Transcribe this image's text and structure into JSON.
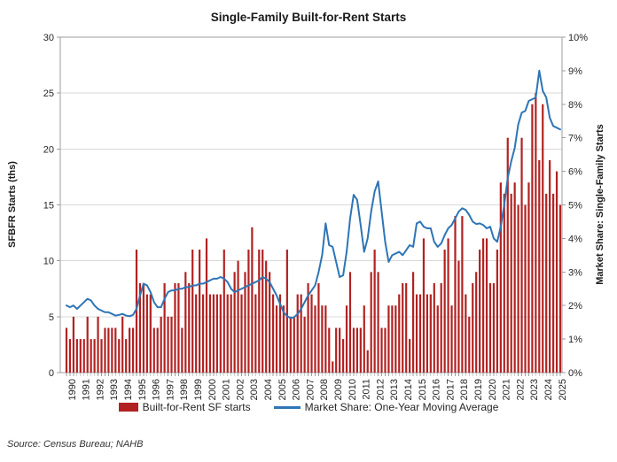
{
  "title": "Single-Family Built-for-Rent Starts",
  "source": "Source: Census Bureau; NAHB",
  "legend": {
    "bars_label": "Built-for-Rent SF starts",
    "line_label": "Market Share: One-Year Moving Average"
  },
  "colors": {
    "bar": "#B22222",
    "line": "#2E75B6",
    "grid": "#D9D9D9",
    "axis": "#9E9E9E",
    "text": "#262626"
  },
  "chart_data": {
    "type": "bar",
    "subtype": "quarterly bars with moving-average line overlay",
    "title": "Single-Family Built-for-Rent Starts",
    "left_axis": {
      "label": "SFBFR Starts (ths)",
      "min": 0,
      "max": 30,
      "tick_step": 5,
      "ticks": [
        "0",
        "5",
        "10",
        "15",
        "20",
        "25",
        "30"
      ]
    },
    "right_axis": {
      "label": "Market Share: Single-Family Starts",
      "min": 0,
      "max": 10,
      "tick_step": 1,
      "ticks": [
        "0%",
        "1%",
        "2%",
        "3%",
        "4%",
        "5%",
        "6%",
        "7%",
        "8%",
        "9%",
        "10%"
      ]
    },
    "x_years": [
      "1990",
      "1991",
      "1992",
      "1993",
      "1994",
      "1995",
      "1996",
      "1997",
      "1998",
      "1999",
      "2000",
      "2001",
      "2002",
      "2003",
      "2004",
      "2005",
      "2006",
      "2007",
      "2008",
      "2009",
      "2010",
      "2011",
      "2012",
      "2013",
      "2014",
      "2015",
      "2016",
      "2017",
      "2018",
      "2019",
      "2020",
      "2021",
      "2022",
      "2023",
      "2024",
      "2025"
    ],
    "quarters_per_year": 4,
    "start_quarter": "1990Q1",
    "end_quarter": "2025Q2",
    "grid": "horizontal",
    "legend_position": "bottom",
    "series": [
      {
        "name": "Built-for-Rent SF starts",
        "type": "bar",
        "axis": "left",
        "values": [
          4,
          3,
          5,
          3,
          3,
          3,
          5,
          3,
          3,
          5,
          3,
          4,
          4,
          4,
          4,
          3,
          5,
          3,
          4,
          4,
          11,
          8,
          8,
          7,
          7,
          4,
          4,
          5,
          8,
          5,
          5,
          8,
          8,
          4,
          9,
          8,
          11,
          7,
          11,
          7,
          12,
          7,
          7,
          7,
          7,
          11,
          7,
          7,
          9,
          10,
          7,
          9,
          11,
          13,
          7,
          11,
          11,
          10,
          9,
          7,
          6,
          7,
          6,
          11,
          5,
          5,
          7,
          7,
          5,
          8,
          7,
          6,
          8,
          6,
          6,
          4,
          1,
          4,
          4,
          3,
          6,
          9,
          4,
          4,
          4,
          6,
          2,
          9,
          11,
          9,
          4,
          4,
          6,
          6,
          6,
          7,
          8,
          8,
          3,
          9,
          7,
          7,
          12,
          7,
          7,
          8,
          6,
          8,
          11,
          12,
          6,
          14,
          10,
          14,
          7,
          5,
          8,
          9,
          11,
          12,
          12,
          8,
          8,
          11,
          17,
          16,
          21,
          16,
          17,
          15,
          21,
          15,
          17,
          24,
          25,
          19,
          24,
          16,
          19,
          16,
          18,
          15
        ]
      },
      {
        "name": "Market Share: One-Year Moving Average",
        "type": "line",
        "axis": "right",
        "values": [
          2.0,
          1.95,
          2.0,
          1.9,
          2.0,
          2.1,
          2.2,
          2.15,
          2.0,
          1.9,
          1.85,
          1.8,
          1.8,
          1.75,
          1.7,
          1.72,
          1.75,
          1.7,
          1.68,
          1.72,
          1.9,
          2.3,
          2.65,
          2.6,
          2.4,
          2.1,
          1.95,
          1.95,
          2.2,
          2.4,
          2.45,
          2.45,
          2.5,
          2.5,
          2.55,
          2.55,
          2.6,
          2.6,
          2.65,
          2.65,
          2.7,
          2.75,
          2.8,
          2.8,
          2.85,
          2.8,
          2.7,
          2.5,
          2.4,
          2.45,
          2.5,
          2.55,
          2.6,
          2.65,
          2.7,
          2.75,
          2.85,
          2.8,
          2.7,
          2.5,
          2.3,
          2.05,
          1.8,
          1.68,
          1.63,
          1.65,
          1.75,
          1.9,
          2.1,
          2.3,
          2.45,
          2.6,
          3.0,
          3.5,
          4.45,
          3.8,
          3.75,
          3.3,
          2.85,
          2.9,
          3.6,
          4.6,
          5.3,
          5.15,
          4.4,
          3.6,
          4.0,
          4.8,
          5.4,
          5.7,
          4.8,
          3.9,
          3.3,
          3.5,
          3.55,
          3.6,
          3.5,
          3.65,
          3.8,
          3.75,
          4.45,
          4.5,
          4.35,
          4.3,
          4.3,
          3.9,
          3.75,
          3.85,
          4.1,
          4.3,
          4.4,
          4.6,
          4.8,
          4.9,
          4.85,
          4.7,
          4.5,
          4.43,
          4.45,
          4.4,
          4.3,
          4.35,
          4.0,
          3.9,
          4.35,
          5.0,
          5.8,
          6.3,
          6.7,
          7.4,
          7.75,
          7.8,
          8.1,
          8.15,
          8.2,
          9.0,
          8.4,
          8.2,
          7.6,
          7.35,
          7.3,
          7.25
        ]
      }
    ]
  }
}
